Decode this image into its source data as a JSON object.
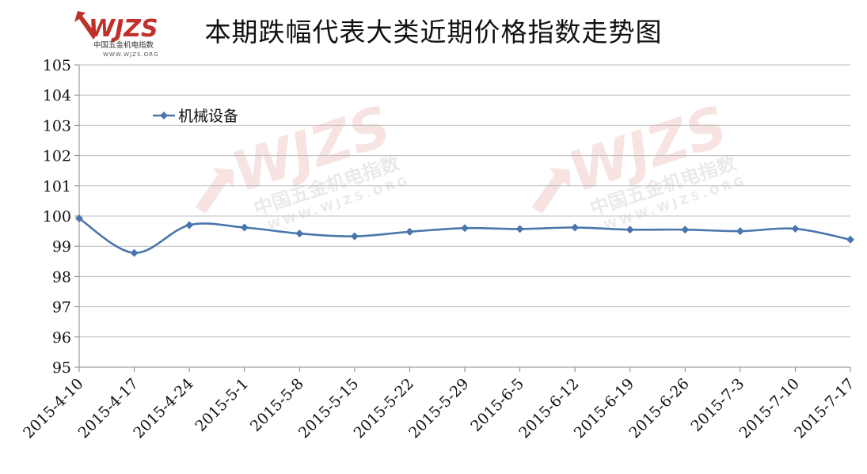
{
  "logo": {
    "wordmark": "WJZS",
    "name_cn": "中国五金机电指数",
    "url": "WWW.WJZS.ORG",
    "brand_color": "#c0312b"
  },
  "chart_data": {
    "type": "line",
    "title": "本期跌幅代表大类近期价格指数走势图",
    "categories": [
      "2015-4-10",
      "2015-4-17",
      "2015-4-24",
      "2015-5-1",
      "2015-5-8",
      "2015-5-15",
      "2015-5-22",
      "2015-5-29",
      "2015-6-5",
      "2015-6-12",
      "2015-6-19",
      "2015-6-26",
      "2015-7-3",
      "2015-7-10",
      "2015-7-17"
    ],
    "series": [
      {
        "name": "机械设备",
        "color": "#4a76ac",
        "values": [
          99.92,
          98.78,
          99.7,
          99.62,
          99.42,
          99.33,
          99.48,
          99.6,
          99.57,
          99.62,
          99.55,
          99.55,
          99.5,
          99.58,
          99.22
        ]
      }
    ],
    "ylim": [
      95,
      105
    ],
    "yticks": [
      95,
      96,
      97,
      98,
      99,
      100,
      101,
      102,
      103,
      104,
      105
    ],
    "xlabel": "",
    "ylabel": "",
    "grid": true,
    "legend_position": "top-left"
  }
}
